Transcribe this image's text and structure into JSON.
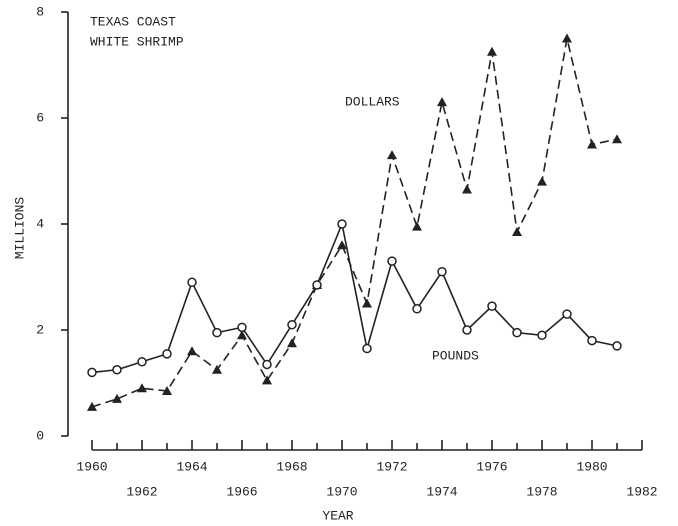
{
  "chart_data": {
    "type": "line",
    "title": "TEXAS COAST",
    "subtitle": "WHITE SHRIMP",
    "xlabel": "YEAR",
    "ylabel": "MILLIONS",
    "x": [
      1960,
      1961,
      1962,
      1963,
      1964,
      1965,
      1966,
      1967,
      1968,
      1969,
      1970,
      1971,
      1972,
      1973,
      1974,
      1975,
      1976,
      1977,
      1978,
      1979,
      1980,
      1981
    ],
    "series": [
      {
        "name": "DOLLARS",
        "color": "#222222",
        "marker": "triangle",
        "dash": true,
        "values": [
          0.55,
          0.7,
          0.9,
          0.85,
          1.6,
          1.25,
          1.9,
          1.05,
          1.75,
          2.85,
          3.6,
          2.5,
          5.3,
          3.95,
          6.3,
          4.65,
          7.25,
          3.85,
          4.8,
          7.5,
          5.5,
          5.6
        ]
      },
      {
        "name": "POUNDS",
        "color": "#222222",
        "marker": "diamond",
        "dash": false,
        "values": [
          1.2,
          1.25,
          1.4,
          1.55,
          2.9,
          1.95,
          2.05,
          1.35,
          2.1,
          2.85,
          4.0,
          1.65,
          3.3,
          2.4,
          3.1,
          2.0,
          2.45,
          1.95,
          1.9,
          2.3,
          1.8,
          1.7
        ]
      }
    ],
    "xlim": [
      1960,
      1982
    ],
    "xticks": [
      1960,
      1962,
      1964,
      1966,
      1968,
      1970,
      1972,
      1974,
      1976,
      1978,
      1980,
      1982
    ],
    "ylim": [
      0,
      8
    ],
    "yticks": [
      0,
      2,
      4,
      6,
      8
    ],
    "grid": false
  }
}
